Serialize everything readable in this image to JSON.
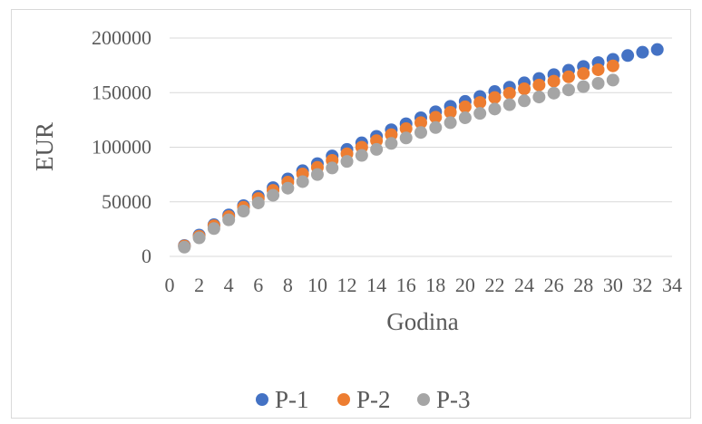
{
  "chart_data": {
    "type": "scatter",
    "xlabel": "Godina",
    "ylabel": "EUR",
    "xlim": [
      0,
      34
    ],
    "ylim": [
      0,
      200000
    ],
    "x_ticks": [
      0,
      2,
      4,
      6,
      8,
      10,
      12,
      14,
      16,
      18,
      20,
      22,
      24,
      26,
      28,
      30,
      32,
      34
    ],
    "y_ticks": [
      0,
      50000,
      100000,
      150000,
      200000
    ],
    "grid": "horizontal",
    "legend_position": "bottom",
    "series": [
      {
        "name": "P-1",
        "color": "#4472C4",
        "x": [
          1,
          2,
          3,
          4,
          5,
          6,
          7,
          8,
          9,
          10,
          11,
          12,
          13,
          14,
          15,
          16,
          17,
          18,
          19,
          20,
          21,
          22,
          23,
          24,
          25,
          26,
          27,
          28,
          29,
          30,
          31,
          32,
          33
        ],
        "values": [
          10000,
          19500,
          29000,
          38000,
          46500,
          55000,
          63000,
          71000,
          78500,
          85000,
          92000,
          98000,
          104000,
          110000,
          116000,
          121500,
          127000,
          132500,
          137500,
          142000,
          146500,
          151000,
          155000,
          159000,
          163000,
          166500,
          170500,
          174000,
          177500,
          180500,
          184000,
          187000,
          189500
        ]
      },
      {
        "name": "P-2",
        "color": "#ED7D31",
        "x": [
          1,
          2,
          3,
          4,
          5,
          6,
          7,
          8,
          9,
          10,
          11,
          12,
          13,
          14,
          15,
          16,
          17,
          18,
          19,
          20,
          21,
          22,
          23,
          24,
          25,
          26,
          27,
          28,
          29,
          30
        ],
        "values": [
          9500,
          18500,
          28000,
          36500,
          45000,
          53000,
          60500,
          68000,
          75500,
          81500,
          88000,
          94000,
          100000,
          106000,
          111500,
          117000,
          122500,
          127500,
          132000,
          137000,
          141000,
          145500,
          149500,
          153500,
          157000,
          160500,
          164500,
          167500,
          171000,
          174500
        ]
      },
      {
        "name": "P-3",
        "color": "#A5A5A5",
        "x": [
          1,
          2,
          3,
          4,
          5,
          6,
          7,
          8,
          9,
          10,
          11,
          12,
          13,
          14,
          15,
          16,
          17,
          18,
          19,
          20,
          21,
          22,
          23,
          24,
          25,
          26,
          27,
          28,
          29,
          30
        ],
        "values": [
          8500,
          17000,
          25500,
          33500,
          41500,
          49000,
          56000,
          62500,
          68500,
          75000,
          81000,
          87000,
          92500,
          98000,
          103500,
          108500,
          113500,
          118000,
          122500,
          127000,
          131000,
          135000,
          139000,
          142500,
          146000,
          149500,
          152500,
          155500,
          158500,
          161500
        ]
      }
    ]
  }
}
